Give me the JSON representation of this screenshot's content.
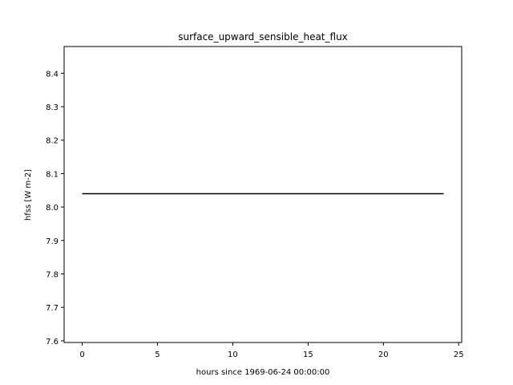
{
  "chart_data": {
    "type": "line",
    "title": "surface_upward_sensible_heat_flux",
    "xlabel": "hours since 1969-06-24 00:00:00",
    "ylabel": "hfss [W m-2]",
    "xlim": [
      -1.2,
      25.2
    ],
    "ylim": [
      7.595,
      8.48
    ],
    "xticks": [
      0,
      5,
      10,
      15,
      20,
      25
    ],
    "xtick_labels": [
      "0",
      "5",
      "10",
      "15",
      "20",
      "25"
    ],
    "yticks": [
      7.6,
      7.7,
      7.8,
      7.9,
      8.0,
      8.1,
      8.2,
      8.3,
      8.4
    ],
    "ytick_labels": [
      "7.6",
      "7.7",
      "7.8",
      "7.9",
      "8.0",
      "8.1",
      "8.2",
      "8.3",
      "8.4"
    ],
    "grid": false,
    "series": [
      {
        "color": "#000000",
        "x": [
          0,
          1,
          2,
          3,
          4,
          5,
          6,
          7,
          8,
          9,
          10,
          11,
          12,
          13,
          14,
          15,
          16,
          17,
          18,
          19,
          20,
          21,
          22,
          23,
          24
        ],
        "y": [
          8.04,
          8.04,
          8.04,
          8.04,
          8.04,
          8.04,
          8.04,
          8.04,
          8.04,
          8.04,
          8.04,
          8.04,
          8.04,
          8.04,
          8.04,
          8.04,
          8.04,
          8.04,
          8.04,
          8.04,
          8.04,
          8.04,
          8.04,
          8.04,
          8.04
        ]
      }
    ]
  }
}
